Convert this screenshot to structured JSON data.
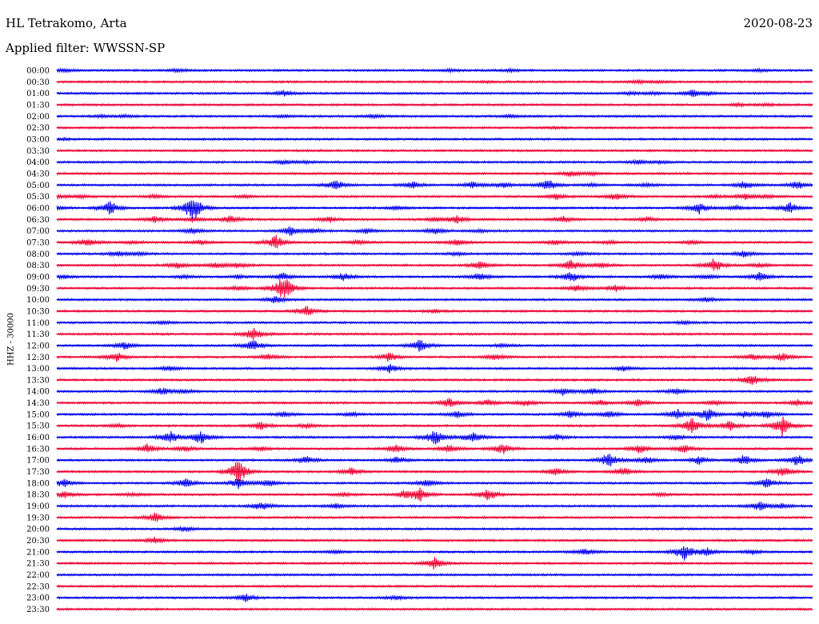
{
  "header": {
    "station": "HL Tetrakomo, Arta",
    "date": "2020-08-23",
    "filter": "Applied filter: WWSSN-SP"
  },
  "chart_data": {
    "type": "line",
    "title": "HL Tetrakomo, Arta",
    "date": "2020-08-23",
    "filter": "WWSSN-SP",
    "ylabel": "HHZ - 30000",
    "grid": false,
    "colors": [
      "#0000ee",
      "#ee0033"
    ],
    "traces": [
      {
        "label": "00:00",
        "events": [
          [
            0.01,
            2
          ],
          [
            0.16,
            2
          ],
          [
            0.52,
            1.5
          ],
          [
            0.6,
            1.5
          ],
          [
            0.93,
            1.5
          ]
        ]
      },
      {
        "label": "00:30",
        "events": [
          [
            0.57,
            1
          ],
          [
            0.77,
            2
          ],
          [
            0.8,
            1
          ]
        ]
      },
      {
        "label": "01:00",
        "events": [
          [
            0.3,
            3.5
          ],
          [
            0.76,
            1.5
          ],
          [
            0.79,
            1.5
          ],
          [
            0.84,
            4.5
          ],
          [
            0.86,
            2
          ]
        ]
      },
      {
        "label": "01:30",
        "events": [
          [
            0.9,
            2
          ],
          [
            0.94,
            1.5
          ]
        ]
      },
      {
        "label": "02:00",
        "events": [
          [
            0.06,
            1.5
          ],
          [
            0.09,
            1.5
          ],
          [
            0.3,
            1.5
          ],
          [
            0.42,
            2
          ],
          [
            0.6,
            1.5
          ]
        ]
      },
      {
        "label": "02:30",
        "events": [
          [
            0.66,
            1
          ]
        ]
      },
      {
        "label": "03:00",
        "events": [
          [
            0.01,
            1
          ]
        ]
      },
      {
        "label": "03:30",
        "events": []
      },
      {
        "label": "04:00",
        "events": [
          [
            0.3,
            2.5
          ],
          [
            0.33,
            1.5
          ],
          [
            0.77,
            2.5
          ],
          [
            0.8,
            1.5
          ]
        ]
      },
      {
        "label": "04:30",
        "events": [
          [
            0.68,
            4
          ],
          [
            0.71,
            1.5
          ]
        ]
      },
      {
        "label": "05:00",
        "events": [
          [
            0.37,
            7
          ],
          [
            0.47,
            5
          ],
          [
            0.55,
            4
          ],
          [
            0.59,
            4
          ],
          [
            0.65,
            7
          ],
          [
            0.71,
            2
          ],
          [
            0.78,
            2
          ],
          [
            0.91,
            5
          ],
          [
            0.98,
            5
          ]
        ]
      },
      {
        "label": "05:30",
        "events": [
          [
            0,
            2
          ],
          [
            0.03,
            2
          ],
          [
            0.13,
            2
          ],
          [
            0.25,
            2
          ],
          [
            0.66,
            4
          ],
          [
            0.74,
            5
          ],
          [
            0.87,
            2
          ],
          [
            0.91,
            4
          ],
          [
            0.94,
            2
          ]
        ]
      },
      {
        "label": "06:00",
        "events": [
          [
            0,
            2
          ],
          [
            0.07,
            9
          ],
          [
            0.18,
            18
          ],
          [
            0.45,
            2
          ],
          [
            0.85,
            7
          ],
          [
            0.9,
            3
          ],
          [
            0.97,
            7
          ]
        ]
      },
      {
        "label": "06:30",
        "events": [
          [
            0.13,
            4
          ],
          [
            0.18,
            3
          ],
          [
            0.23,
            5
          ],
          [
            0.36,
            4
          ],
          [
            0.5,
            3
          ],
          [
            0.53,
            5
          ],
          [
            0.67,
            4
          ],
          [
            0.78,
            3
          ]
        ]
      },
      {
        "label": "07:00",
        "events": [
          [
            0.18,
            4
          ],
          [
            0.31,
            6
          ],
          [
            0.34,
            3
          ],
          [
            0.41,
            3
          ],
          [
            0.5,
            4
          ],
          [
            0.56,
            2
          ]
        ]
      },
      {
        "label": "07:30",
        "events": [
          [
            0.04,
            5
          ],
          [
            0.1,
            2
          ],
          [
            0.19,
            3
          ],
          [
            0.29,
            9
          ],
          [
            0.4,
            3
          ],
          [
            0.53,
            4
          ],
          [
            0.66,
            3
          ],
          [
            0.73,
            2
          ],
          [
            0.84,
            2
          ]
        ]
      },
      {
        "label": "08:00",
        "events": [
          [
            0.08,
            3
          ],
          [
            0.11,
            2
          ],
          [
            0.53,
            2
          ],
          [
            0.69,
            2
          ],
          [
            0.91,
            4
          ]
        ]
      },
      {
        "label": "08:30",
        "events": [
          [
            0.16,
            4
          ],
          [
            0.21,
            3
          ],
          [
            0.24,
            3
          ],
          [
            0.56,
            5
          ],
          [
            0.68,
            7
          ],
          [
            0.72,
            3
          ],
          [
            0.87,
            9
          ],
          [
            0.93,
            3
          ]
        ]
      },
      {
        "label": "09:00",
        "events": [
          [
            0.01,
            2
          ],
          [
            0.17,
            2
          ],
          [
            0.24,
            2
          ],
          [
            0.3,
            5
          ],
          [
            0.38,
            5
          ],
          [
            0.56,
            5
          ],
          [
            0.68,
            7
          ],
          [
            0.8,
            4
          ],
          [
            0.86,
            3
          ],
          [
            0.93,
            6
          ]
        ]
      },
      {
        "label": "09:30",
        "events": [
          [
            0.24,
            3
          ],
          [
            0.3,
            18
          ],
          [
            0.69,
            4
          ],
          [
            0.74,
            4
          ]
        ]
      },
      {
        "label": "10:00",
        "events": [
          [
            0.29,
            5
          ],
          [
            0.86,
            3
          ]
        ]
      },
      {
        "label": "10:30",
        "events": [
          [
            0.33,
            7
          ],
          [
            0.5,
            2
          ]
        ]
      },
      {
        "label": "11:00",
        "events": [
          [
            0.14,
            2
          ],
          [
            0.83,
            2
          ]
        ]
      },
      {
        "label": "11:30",
        "events": [
          [
            0.26,
            8
          ]
        ]
      },
      {
        "label": "12:00",
        "events": [
          [
            0.09,
            5
          ],
          [
            0.26,
            7
          ],
          [
            0.48,
            8
          ],
          [
            0.59,
            2
          ]
        ]
      },
      {
        "label": "12:30",
        "events": [
          [
            0.08,
            6
          ],
          [
            0.28,
            4
          ],
          [
            0.44,
            6
          ],
          [
            0.58,
            4
          ],
          [
            0.92,
            4
          ],
          [
            0.96,
            5
          ]
        ]
      },
      {
        "label": "13:00",
        "events": [
          [
            0.15,
            3
          ],
          [
            0.44,
            6
          ],
          [
            0.75,
            3
          ]
        ]
      },
      {
        "label": "13:30",
        "events": [
          [
            0.92,
            8
          ]
        ]
      },
      {
        "label": "14:00",
        "events": [
          [
            0.14,
            5
          ],
          [
            0.17,
            2
          ],
          [
            0.67,
            5
          ],
          [
            0.71,
            4
          ],
          [
            0.82,
            4
          ]
        ]
      },
      {
        "label": "14:30",
        "events": [
          [
            0.52,
            6
          ],
          [
            0.57,
            4
          ],
          [
            0.62,
            4
          ],
          [
            0.72,
            3
          ],
          [
            0.77,
            5
          ],
          [
            0.87,
            3
          ],
          [
            0.98,
            4
          ]
        ]
      },
      {
        "label": "15:00",
        "events": [
          [
            0.3,
            3
          ],
          [
            0.39,
            3
          ],
          [
            0.53,
            4
          ],
          [
            0.68,
            5
          ],
          [
            0.73,
            5
          ],
          [
            0.82,
            7
          ],
          [
            0.86,
            9
          ],
          [
            0.91,
            4
          ],
          [
            0.94,
            5
          ]
        ]
      },
      {
        "label": "15:30",
        "events": [
          [
            0.08,
            2
          ],
          [
            0.27,
            5
          ],
          [
            0.33,
            3
          ],
          [
            0.84,
            11
          ],
          [
            0.89,
            7
          ],
          [
            0.96,
            13
          ]
        ]
      },
      {
        "label": "16:00",
        "events": [
          [
            0.15,
            8
          ],
          [
            0.19,
            9
          ],
          [
            0.5,
            10
          ],
          [
            0.55,
            8
          ],
          [
            0.66,
            4
          ],
          [
            0.82,
            3
          ]
        ]
      },
      {
        "label": "16:30",
        "events": [
          [
            0.12,
            6
          ],
          [
            0.17,
            3
          ],
          [
            0.27,
            3
          ],
          [
            0.45,
            6
          ],
          [
            0.52,
            5
          ],
          [
            0.59,
            7
          ],
          [
            0.77,
            6
          ],
          [
            0.83,
            5
          ]
        ]
      },
      {
        "label": "17:00",
        "events": [
          [
            0.33,
            5
          ],
          [
            0.45,
            4
          ],
          [
            0.73,
            10
          ],
          [
            0.78,
            5
          ],
          [
            0.85,
            5
          ],
          [
            0.91,
            7
          ],
          [
            0.98,
            8
          ]
        ]
      },
      {
        "label": "17:30",
        "events": [
          [
            0.24,
            16
          ],
          [
            0.39,
            5
          ],
          [
            0.66,
            5
          ],
          [
            0.75,
            5
          ],
          [
            0.96,
            7
          ]
        ]
      },
      {
        "label": "18:00",
        "events": [
          [
            0.01,
            5
          ],
          [
            0.17,
            6
          ],
          [
            0.24,
            7
          ],
          [
            0.28,
            5
          ],
          [
            0.49,
            5
          ],
          [
            0.94,
            6
          ]
        ]
      },
      {
        "label": "18:30",
        "events": [
          [
            0.01,
            5
          ],
          [
            0.1,
            2
          ],
          [
            0.38,
            2
          ],
          [
            0.46,
            4
          ],
          [
            0.48,
            9
          ],
          [
            0.57,
            8
          ],
          [
            0.8,
            2
          ]
        ]
      },
      {
        "label": "19:00",
        "events": [
          [
            0.27,
            6
          ],
          [
            0.37,
            3
          ],
          [
            0.93,
            6
          ],
          [
            0.96,
            3
          ]
        ]
      },
      {
        "label": "19:30",
        "events": [
          [
            0.13,
            6
          ]
        ]
      },
      {
        "label": "20:00",
        "events": [
          [
            0.17,
            3
          ]
        ]
      },
      {
        "label": "20:30",
        "events": [
          [
            0.13,
            4
          ]
        ]
      },
      {
        "label": "21:00",
        "events": [
          [
            0.37,
            2
          ],
          [
            0.7,
            5
          ],
          [
            0.83,
            11
          ],
          [
            0.86,
            5
          ],
          [
            0.92,
            3
          ]
        ]
      },
      {
        "label": "21:30",
        "events": [
          [
            0.5,
            8
          ]
        ]
      },
      {
        "label": "22:00",
        "events": []
      },
      {
        "label": "22:30",
        "events": []
      },
      {
        "label": "23:00",
        "events": [
          [
            0.25,
            5
          ],
          [
            0.45,
            2
          ]
        ]
      },
      {
        "label": "23:30",
        "events": []
      }
    ]
  }
}
